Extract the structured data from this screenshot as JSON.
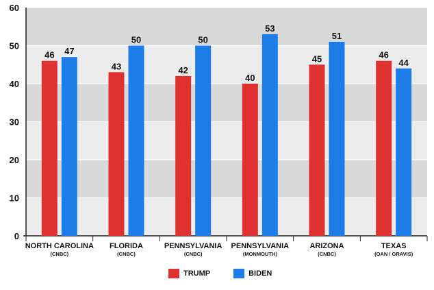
{
  "chart_data": {
    "type": "bar",
    "ylim": [
      0,
      60
    ],
    "yticks": [
      0,
      10,
      20,
      30,
      40,
      50,
      60
    ],
    "categories": [
      {
        "name": "NORTH CAROLINA",
        "source": "(CNBC)"
      },
      {
        "name": "FLORIDA",
        "source": "(CNBC)"
      },
      {
        "name": "PENNSYLVANIA",
        "source": "(CNBC)"
      },
      {
        "name": "PENNSYLVANIA",
        "source": "(MONMOUTH)"
      },
      {
        "name": "ARIZONA",
        "source": "(CNBC)"
      },
      {
        "name": "TEXAS",
        "source": "(OAN / GRAVIS)"
      }
    ],
    "series": [
      {
        "name": "TRUMP",
        "color": "#e03131",
        "values": [
          46,
          43,
          42,
          40,
          45,
          46
        ]
      },
      {
        "name": "BIDEN",
        "color": "#1c7ce8",
        "values": [
          47,
          50,
          50,
          53,
          51,
          44
        ]
      }
    ],
    "grid": true,
    "legend_position": "bottom-center"
  }
}
